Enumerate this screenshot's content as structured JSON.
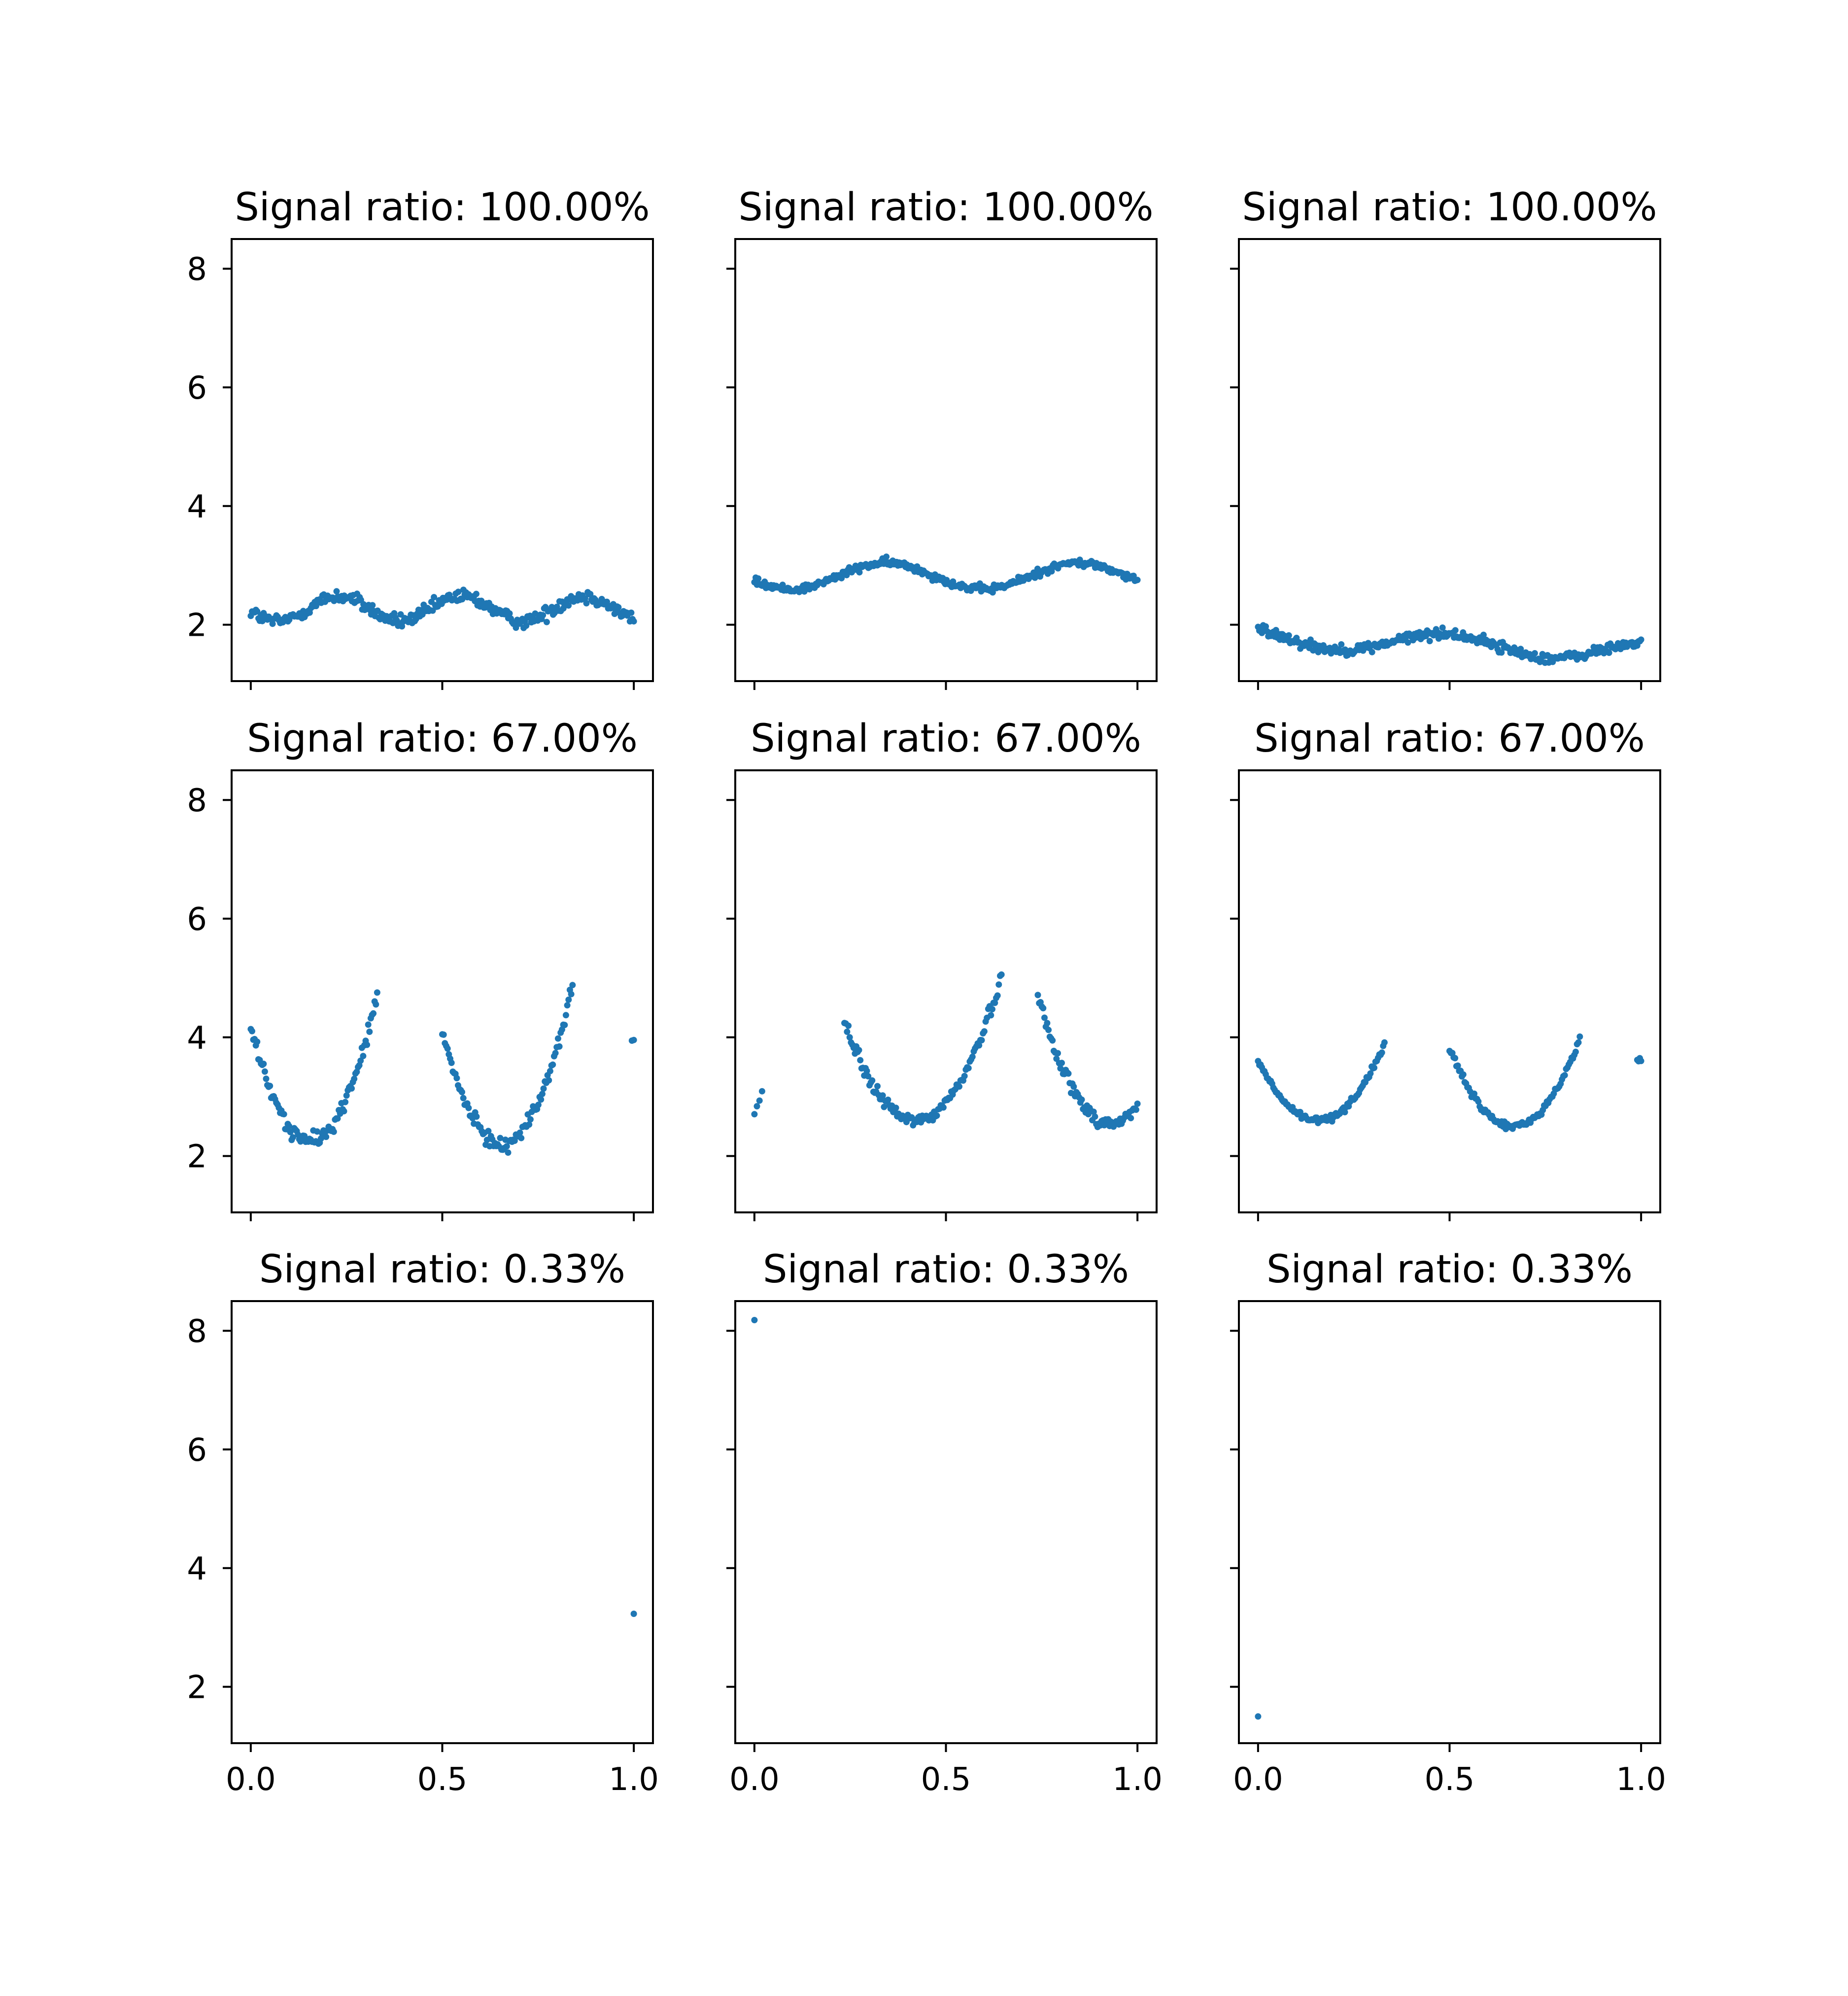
{
  "chart_data": {
    "type": "scatter",
    "layout": {
      "rows": 3,
      "cols": 3,
      "sharex": true,
      "sharey": true
    },
    "xlim": [
      -0.05,
      1.05
    ],
    "ylim": [
      1.05,
      8.5
    ],
    "xticks": [
      0.0,
      0.5,
      1.0
    ],
    "xtick_labels": [
      "0.0",
      "0.5",
      "1.0"
    ],
    "yticks": [
      2,
      4,
      6,
      8
    ],
    "ytick_labels": [
      "2",
      "4",
      "6",
      "8"
    ],
    "marker_color": "#1f77b4",
    "grid": false,
    "panels": [
      {
        "title": "Signal ratio: 100.00%",
        "segments": [
          {
            "x0": 0.0,
            "x1": 1.0,
            "n": 300,
            "f": "rip",
            "a": 2.27,
            "b": 0.0,
            "c": 0.0,
            "r": 0.21,
            "p": 0.32,
            "ph": 0.15,
            "noise": 0.12
          }
        ]
      },
      {
        "title": "Signal ratio: 100.00%",
        "segments": [
          {
            "x0": 0.0,
            "x1": 1.0,
            "n": 300,
            "f": "rip",
            "a": 2.82,
            "b": 0.0,
            "c": 0.0,
            "r": 0.22,
            "p": 0.5,
            "ph": 0.22,
            "noise": 0.07
          }
        ]
      },
      {
        "title": "Signal ratio: 100.00%",
        "segments": [
          {
            "x0": 0.0,
            "x1": 1.0,
            "n": 300,
            "f": "rip",
            "a": 1.8,
            "b": -0.25,
            "c": 0.0,
            "r": 0.17,
            "p": 0.55,
            "ph": 0.35,
            "noise": 0.09
          }
        ]
      },
      {
        "title": "Signal ratio: 67.00%",
        "segments": [
          {
            "x0": 0.0,
            "x1": 0.33,
            "n": 100,
            "f": "par",
            "a": 2.25,
            "b": 0.155,
            "c": 80,
            "noise": 0.13
          },
          {
            "x0": 0.5,
            "x1": 0.84,
            "n": 100,
            "f": "par",
            "a": 2.2,
            "b": 0.655,
            "c": 78,
            "noise": 0.13
          },
          {
            "x0": 0.995,
            "x1": 1.0,
            "n": 2,
            "f": "lin",
            "a": 3.75,
            "b": 0.2,
            "c": 0.0,
            "noise": 0.02
          }
        ]
      },
      {
        "title": "Signal ratio: 67.00%",
        "segments": [
          {
            "x0": 0.0,
            "x1": 0.02,
            "n": 4,
            "f": "lin",
            "a": 2.7,
            "b": 20,
            "c": 0.0,
            "noise": 0.05
          },
          {
            "x0": 0.235,
            "x1": 0.645,
            "n": 120,
            "f": "par",
            "a": 2.6,
            "b": 0.42,
            "c": 48,
            "noise": 0.12
          },
          {
            "x0": 0.74,
            "x1": 1.0,
            "n": 76,
            "f": "par",
            "a": 2.55,
            "b": 0.93,
            "c": 60,
            "noise": 0.12
          }
        ]
      },
      {
        "title": "Signal ratio: 67.00%",
        "segments": [
          {
            "x0": 0.0,
            "x1": 0.33,
            "n": 100,
            "f": "par",
            "a": 2.6,
            "b": 0.155,
            "c": 42,
            "noise": 0.06
          },
          {
            "x0": 0.5,
            "x1": 0.84,
            "n": 96,
            "f": "par",
            "a": 2.5,
            "b": 0.665,
            "c": 48,
            "noise": 0.06
          },
          {
            "x0": 0.99,
            "x1": 1.0,
            "n": 4,
            "f": "lin",
            "a": 3.62,
            "b": 0.0,
            "c": 0.0,
            "noise": 0.05
          }
        ]
      },
      {
        "title": "Signal ratio: 0.33%",
        "segments": [
          {
            "x0": 1.0,
            "x1": 1.0,
            "n": 1,
            "f": "lin",
            "a": 3.23,
            "b": 0.0,
            "c": 0.0,
            "noise": 0.0
          }
        ]
      },
      {
        "title": "Signal ratio: 0.33%",
        "segments": [
          {
            "x0": 0.0,
            "x1": 0.0,
            "n": 1,
            "f": "lin",
            "a": 8.18,
            "b": 0.0,
            "c": 0.0,
            "noise": 0.0
          }
        ]
      },
      {
        "title": "Signal ratio: 0.33%",
        "segments": [
          {
            "x0": 0.0,
            "x1": 0.0,
            "n": 1,
            "f": "lin",
            "a": 1.5,
            "b": 0.0,
            "c": 0.0,
            "noise": 0.0
          }
        ]
      }
    ]
  }
}
